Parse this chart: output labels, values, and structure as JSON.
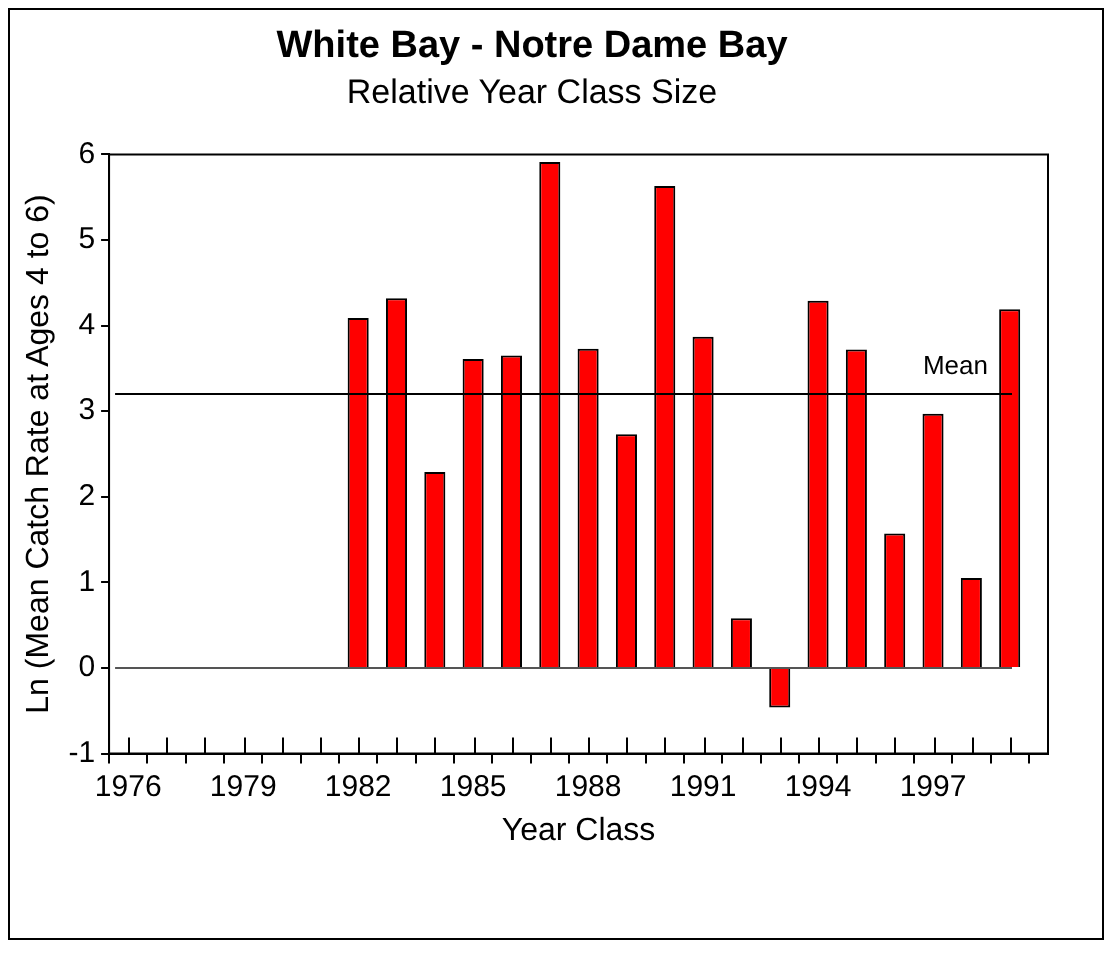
{
  "chart_data": {
    "type": "bar",
    "title": "White Bay - Notre Dame Bay",
    "subtitle": "Relative Year Class Size",
    "xlabel": "Year Class",
    "ylabel": "Ln (Mean Catch Rate at Ages 4 to 6)",
    "x": [
      1982,
      1983,
      1984,
      1985,
      1986,
      1987,
      1988,
      1989,
      1990,
      1991,
      1992,
      1993,
      1994,
      1995,
      1996,
      1997,
      1998,
      1999
    ],
    "values": [
      4.09,
      4.32,
      2.29,
      3.61,
      3.65,
      5.91,
      3.73,
      2.73,
      5.63,
      3.87,
      0.58,
      -0.46,
      4.29,
      3.72,
      1.57,
      2.97,
      1.05,
      4.19
    ],
    "color": "#ff0000",
    "xlim": [
      1975.5,
      2000
    ],
    "xticks": [
      1976,
      {
        "value": 1977,
        "label": null
      },
      {
        "value": 1978,
        "label": null
      },
      1979,
      {
        "value": 1980,
        "label": null
      },
      {
        "value": 1981,
        "label": null
      },
      1982,
      {
        "value": 1983,
        "label": null
      },
      {
        "value": 1984,
        "label": null
      },
      1985,
      {
        "value": 1986,
        "label": null
      },
      {
        "value": 1987,
        "label": null
      },
      1988,
      {
        "value": 1989,
        "label": null
      },
      {
        "value": 1990,
        "label": null
      },
      1991,
      {
        "value": 1992,
        "label": null
      },
      {
        "value": 1993,
        "label": null
      },
      1994,
      {
        "value": 1995,
        "label": null
      },
      {
        "value": 1996,
        "label": null
      },
      1997,
      {
        "value": 1998,
        "label": null
      },
      {
        "value": 1999,
        "label": null
      }
    ],
    "ylim": [
      -1,
      6
    ],
    "yticks": [
      -1,
      0,
      1,
      2,
      3,
      4,
      5,
      6
    ],
    "ref_lines": [
      {
        "axis": "y",
        "value": 0,
        "color": "#555555"
      },
      {
        "axis": "y",
        "value": 3.2,
        "label": "Mean",
        "color": "#000000"
      }
    ],
    "grid": false,
    "legend": false
  }
}
